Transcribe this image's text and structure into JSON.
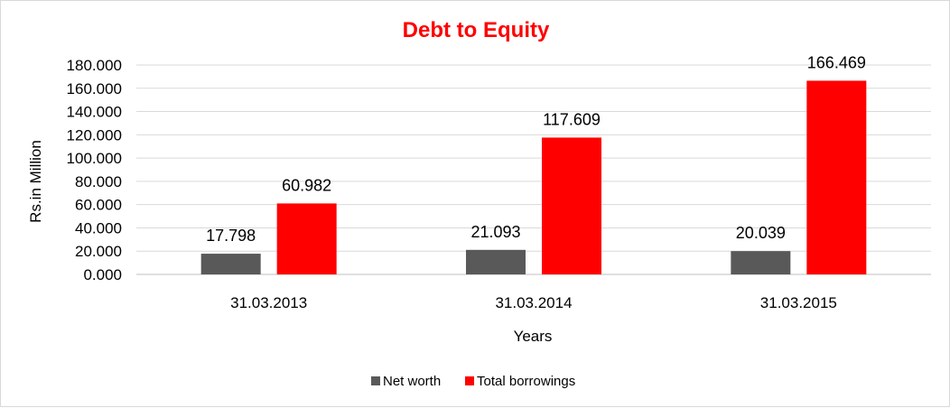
{
  "chart_data": {
    "type": "bar",
    "title": "Debt to Equity",
    "xlabel": "Years",
    "ylabel": "Rs.in Million",
    "categories": [
      "31.03.2013",
      "31.03.2014",
      "31.03.2015"
    ],
    "series": [
      {
        "name": "Net worth",
        "values": [
          17.798,
          21.093,
          20.039
        ],
        "labels": [
          "17.798",
          "21.093",
          "20.039"
        ],
        "color": "#595959"
      },
      {
        "name": "Total borrowings",
        "values": [
          60.982,
          117.609,
          166.469
        ],
        "labels": [
          "60.982",
          "117.609",
          "166.469"
        ],
        "color": "#ff0000"
      }
    ],
    "ylim": [
      0,
      180
    ],
    "yticks": [
      "0.000",
      "20.000",
      "40.000",
      "60.000",
      "80.000",
      "100.000",
      "120.000",
      "140.000",
      "160.000",
      "180.000"
    ],
    "grid": true,
    "legend_position": "bottom",
    "title_color": "#ff0000"
  }
}
